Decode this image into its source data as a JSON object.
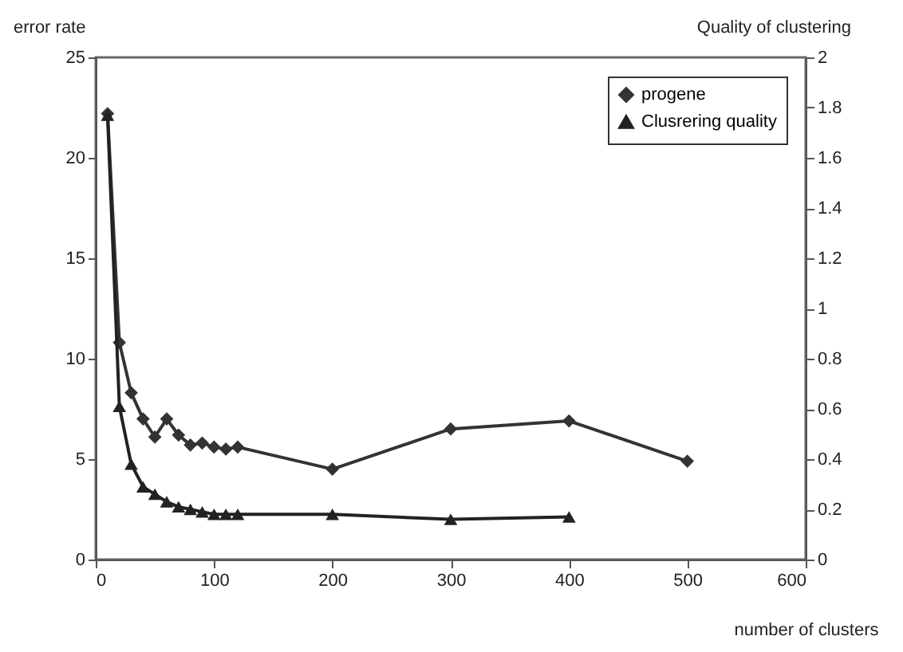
{
  "chart_data": {
    "type": "line",
    "xlabel": "number of clusters",
    "ylabel": "error rate",
    "y2label": "Quality  of clustering",
    "xlim": [
      0,
      600
    ],
    "xticks": [
      0,
      100,
      200,
      300,
      400,
      500,
      600
    ],
    "ylim": [
      0,
      25
    ],
    "yticks": [
      0,
      5,
      10,
      15,
      20,
      25
    ],
    "y2lim": [
      0,
      2
    ],
    "y2ticks": [
      0,
      0.2,
      0.4,
      0.6,
      0.8,
      1,
      1.2,
      1.4,
      1.6,
      1.8,
      2
    ],
    "grid": false,
    "legend": "top right",
    "series": [
      {
        "name": "progene",
        "color": "#333333",
        "marker": "diamond",
        "x": [
          10,
          20,
          30,
          40,
          50,
          60,
          70,
          80,
          90,
          100,
          110,
          120,
          200,
          300,
          400,
          500
        ],
        "values": [
          22.2,
          10.8,
          8.3,
          7.0,
          6.1,
          7.0,
          6.2,
          5.7,
          5.8,
          5.6,
          5.5,
          5.6,
          4.5,
          6.5,
          6.9,
          4.9
        ]
      },
      {
        "name": "Clusrering quality",
        "color": "#222222",
        "marker": "triangle",
        "axis": "y2",
        "x": [
          10,
          20,
          30,
          40,
          50,
          60,
          70,
          80,
          90,
          100,
          110,
          120,
          200,
          300,
          400
        ],
        "values": [
          1.77,
          0.61,
          0.38,
          0.29,
          0.26,
          0.23,
          0.21,
          0.2,
          0.19,
          0.18,
          0.18,
          0.18,
          0.18,
          0.16,
          0.17
        ]
      }
    ]
  }
}
